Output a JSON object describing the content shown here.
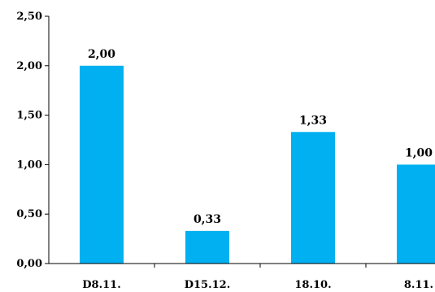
{
  "chart_data": {
    "type": "bar",
    "categories": [
      "D8.11.",
      "D15.12.",
      "18.10.",
      "8.11."
    ],
    "values": [
      2.0,
      0.33,
      1.33,
      1.0
    ],
    "data_labels": [
      "2,00",
      "0,33",
      "1,33",
      "1,00"
    ],
    "y_ticks": [
      "0,00",
      "0,50",
      "1,00",
      "1,50",
      "2,00",
      "2,50"
    ],
    "y_tick_values": [
      0,
      0.5,
      1.0,
      1.5,
      2.0,
      2.5
    ],
    "ylim": [
      0,
      2.5
    ],
    "bar_color": "#00B0F0",
    "grid": false,
    "legend": "none",
    "title": "",
    "xlabel": "",
    "ylabel": ""
  }
}
